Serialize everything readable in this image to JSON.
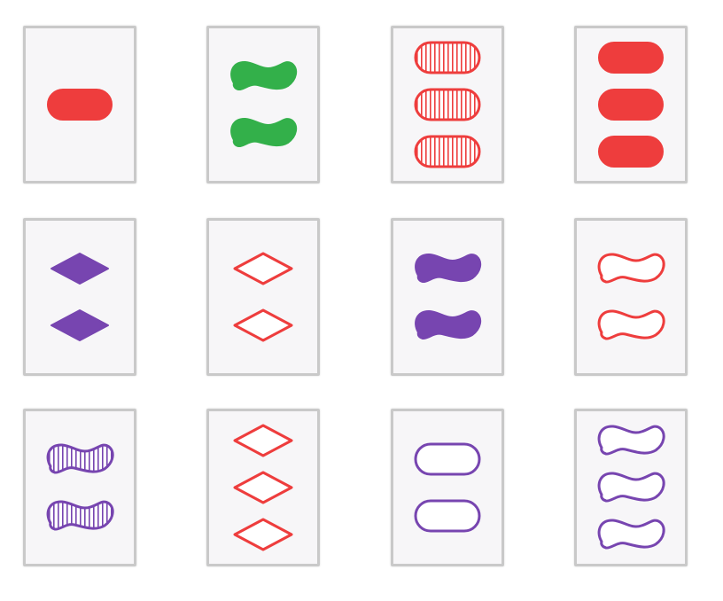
{
  "game": "set",
  "colors": {
    "red": "#ee3d3d",
    "green": "#33b04a",
    "purple": "#7745b0",
    "card_bg": "#f7f6f8",
    "card_border": "#c9c9c9"
  },
  "cards": [
    {
      "row": 0,
      "col": 0,
      "count": 1,
      "color": "red",
      "shape": "oval",
      "fill": "solid"
    },
    {
      "row": 0,
      "col": 1,
      "count": 2,
      "color": "green",
      "shape": "squiggle",
      "fill": "solid"
    },
    {
      "row": 0,
      "col": 2,
      "count": 3,
      "color": "red",
      "shape": "oval",
      "fill": "striped"
    },
    {
      "row": 0,
      "col": 3,
      "count": 3,
      "color": "red",
      "shape": "oval",
      "fill": "solid"
    },
    {
      "row": 1,
      "col": 0,
      "count": 2,
      "color": "purple",
      "shape": "diamond",
      "fill": "solid"
    },
    {
      "row": 1,
      "col": 1,
      "count": 2,
      "color": "red",
      "shape": "diamond",
      "fill": "empty"
    },
    {
      "row": 1,
      "col": 2,
      "count": 2,
      "color": "purple",
      "shape": "squiggle",
      "fill": "solid"
    },
    {
      "row": 1,
      "col": 3,
      "count": 2,
      "color": "red",
      "shape": "squiggle",
      "fill": "empty"
    },
    {
      "row": 2,
      "col": 0,
      "count": 2,
      "color": "purple",
      "shape": "squiggle",
      "fill": "striped"
    },
    {
      "row": 2,
      "col": 1,
      "count": 3,
      "color": "red",
      "shape": "diamond",
      "fill": "empty"
    },
    {
      "row": 2,
      "col": 2,
      "count": 2,
      "color": "purple",
      "shape": "oval",
      "fill": "empty"
    },
    {
      "row": 2,
      "col": 3,
      "count": 3,
      "color": "purple",
      "shape": "squiggle",
      "fill": "empty"
    }
  ]
}
